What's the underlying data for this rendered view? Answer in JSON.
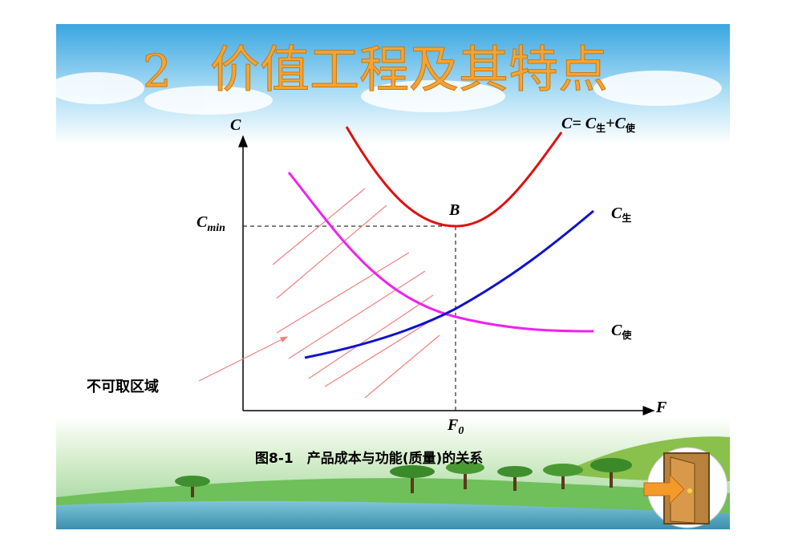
{
  "title": {
    "number": "2",
    "text": "价值工程及其特点"
  },
  "diagram": {
    "y_axis_label": "C",
    "x_axis_label": "F",
    "total_cost_label": [
      "C= C",
      "生",
      "+C",
      "使"
    ],
    "production_cost_label": [
      "C",
      "生"
    ],
    "usage_cost_label": [
      "C",
      "使"
    ],
    "min_cost_label": [
      "C",
      "min"
    ],
    "min_point_label": "B",
    "optimal_function_label": [
      "F",
      "0"
    ],
    "region_label": "不可取区域",
    "caption": "图8-1　产品成本与功能(质量)的关系"
  }
}
